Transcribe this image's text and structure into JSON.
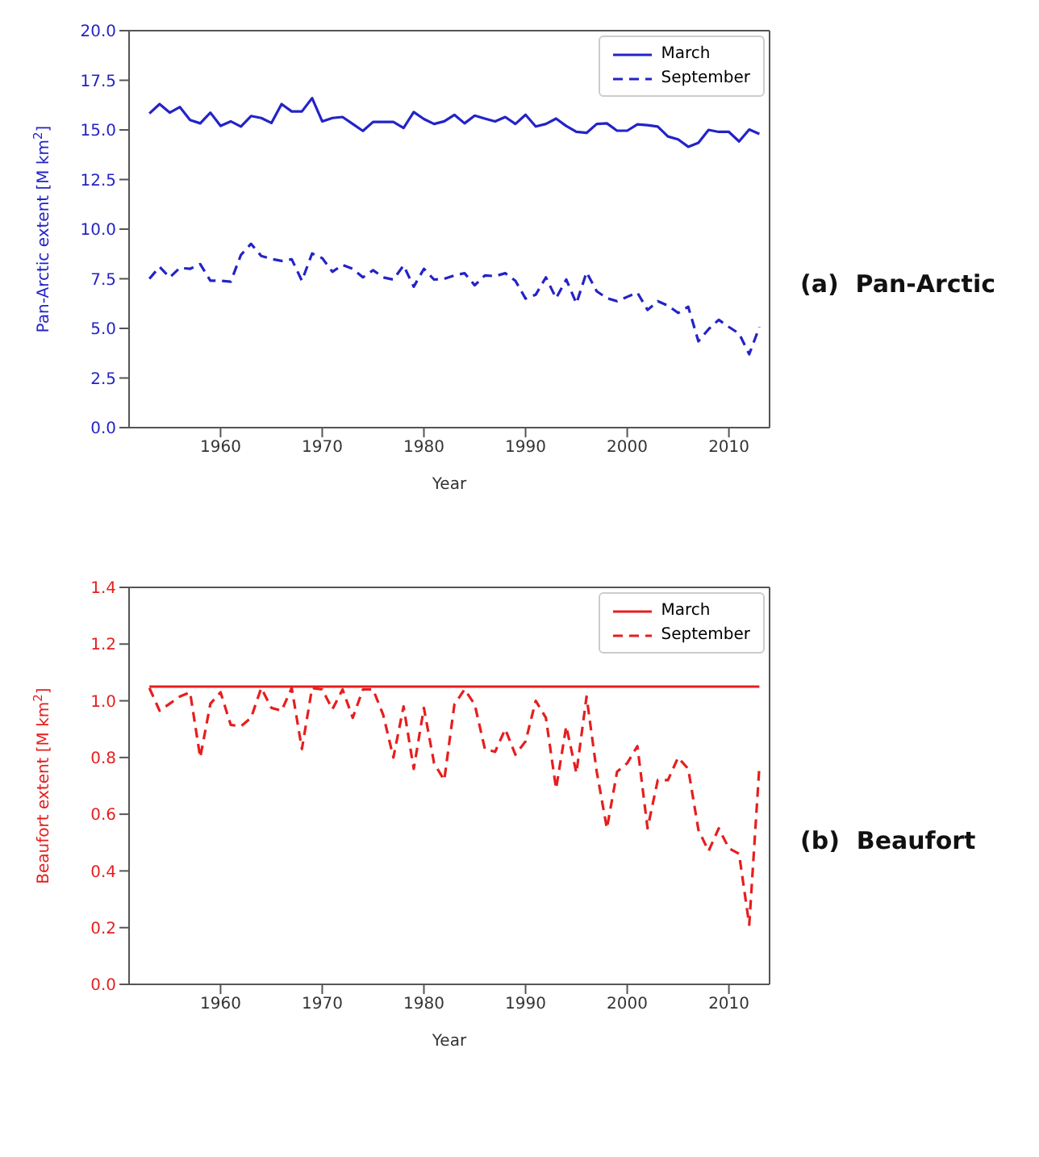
{
  "chart_data": [
    {
      "type": "line",
      "xlabel": "Year",
      "ylabel": "Pan-Arctic extent [M km$^{2}$]",
      "annotations": [
        "(a)  Pan-Arctic"
      ],
      "legend": "top right",
      "x": [
        1953,
        1954,
        1955,
        1956,
        1957,
        1958,
        1959,
        1960,
        1961,
        1962,
        1963,
        1964,
        1965,
        1966,
        1967,
        1968,
        1969,
        1970,
        1971,
        1972,
        1973,
        1974,
        1975,
        1976,
        1977,
        1978,
        1979,
        1980,
        1981,
        1982,
        1983,
        1984,
        1985,
        1986,
        1987,
        1988,
        1989,
        1990,
        1991,
        1992,
        1993,
        1994,
        1995,
        1996,
        1997,
        1998,
        1999,
        2000,
        2001,
        2002,
        2003,
        2004,
        2005,
        2006,
        2007,
        2008,
        2009,
        2010,
        2011,
        2012,
        2013
      ],
      "series": [
        {
          "name": "March",
          "color": "#2323c8",
          "line_style": "solid",
          "values": [
            15.83,
            16.3,
            15.87,
            16.15,
            15.5,
            15.33,
            15.87,
            15.2,
            15.43,
            15.17,
            15.7,
            15.6,
            15.35,
            16.3,
            15.93,
            15.93,
            16.6,
            15.43,
            15.6,
            15.65,
            15.3,
            14.95,
            15.4,
            15.4,
            15.4,
            15.1,
            15.9,
            15.55,
            15.3,
            15.43,
            15.76,
            15.33,
            15.72,
            15.57,
            15.43,
            15.65,
            15.3,
            15.76,
            15.17,
            15.3,
            15.57,
            15.2,
            14.9,
            14.85,
            15.3,
            15.33,
            14.96,
            14.96,
            15.28,
            15.24,
            15.17,
            14.67,
            14.52,
            14.15,
            14.35,
            15.0,
            14.9,
            14.9,
            14.42,
            15.02,
            14.8
          ]
        },
        {
          "name": "September",
          "color": "#2323c8",
          "line_style": "dashed",
          "values": [
            7.5,
            8.1,
            7.57,
            8.05,
            8.0,
            8.24,
            7.4,
            7.4,
            7.35,
            8.7,
            9.26,
            8.65,
            8.5,
            8.4,
            8.48,
            7.4,
            8.77,
            8.54,
            7.85,
            8.2,
            8.0,
            7.57,
            7.93,
            7.57,
            7.46,
            8.17,
            7.1,
            8.0,
            7.46,
            7.5,
            7.67,
            7.78,
            7.17,
            7.67,
            7.63,
            7.78,
            7.4,
            6.5,
            6.7,
            7.57,
            6.52,
            7.46,
            6.26,
            7.83,
            6.87,
            6.52,
            6.37,
            6.59,
            6.8,
            5.93,
            6.37,
            6.15,
            5.78,
            6.09,
            4.35,
            4.96,
            5.43,
            5.07,
            4.74,
            3.7,
            5.07
          ]
        }
      ],
      "xlim": [
        1951,
        2014
      ],
      "xticks": [
        1960,
        1970,
        1980,
        1990,
        2000,
        2010
      ],
      "ylim": [
        0,
        20
      ],
      "yticks": [
        {
          "value": 0,
          "label": "0.0"
        },
        2.5,
        {
          "value": 5,
          "label": "5.0"
        },
        7.5,
        {
          "value": 10,
          "label": "10.0"
        },
        12.5,
        {
          "value": 15,
          "label": "15.0"
        },
        17.5,
        {
          "value": 20,
          "label": "20.0"
        }
      ]
    },
    {
      "type": "line",
      "xlabel": "Year",
      "ylabel": "Beaufort extent [M km$^{2}$]",
      "annotations": [
        "(b)  Beaufort"
      ],
      "legend": "top right",
      "x": [
        1953,
        1954,
        1955,
        1956,
        1957,
        1958,
        1959,
        1960,
        1961,
        1962,
        1963,
        1964,
        1965,
        1966,
        1967,
        1968,
        1969,
        1970,
        1971,
        1972,
        1973,
        1974,
        1975,
        1976,
        1977,
        1978,
        1979,
        1980,
        1981,
        1982,
        1983,
        1984,
        1985,
        1986,
        1987,
        1988,
        1989,
        1990,
        1991,
        1992,
        1993,
        1994,
        1995,
        1996,
        1997,
        1998,
        1999,
        2000,
        2001,
        2002,
        2003,
        2004,
        2005,
        2006,
        2007,
        2008,
        2009,
        2010,
        2011,
        2012,
        2013
      ],
      "series": [
        {
          "name": "March",
          "color": "#e61e1e",
          "line_style": "solid",
          "values": [
            1.05,
            1.05,
            1.05,
            1.05,
            1.05,
            1.05,
            1.05,
            1.05,
            1.05,
            1.05,
            1.05,
            1.05,
            1.05,
            1.05,
            1.05,
            1.05,
            1.05,
            1.05,
            1.05,
            1.05,
            1.05,
            1.05,
            1.05,
            1.05,
            1.05,
            1.05,
            1.05,
            1.05,
            1.05,
            1.05,
            1.05,
            1.05,
            1.05,
            1.05,
            1.05,
            1.05,
            1.05,
            1.05,
            1.05,
            1.05,
            1.05,
            1.05,
            1.05,
            1.05,
            1.05,
            1.05,
            1.05,
            1.05,
            1.05,
            1.05,
            1.05,
            1.05,
            1.05,
            1.05,
            1.05,
            1.05,
            1.05,
            1.05,
            1.05,
            1.05,
            1.05
          ]
        },
        {
          "name": "September",
          "color": "#e61e1e",
          "line_style": "dashed",
          "values": [
            1.045,
            0.965,
            0.99,
            1.015,
            1.03,
            0.8,
            0.99,
            1.03,
            0.915,
            0.91,
            0.94,
            1.045,
            0.975,
            0.965,
            1.045,
            0.83,
            1.045,
            1.04,
            0.97,
            1.04,
            0.94,
            1.04,
            1.04,
            0.95,
            0.8,
            0.98,
            0.76,
            0.975,
            0.78,
            0.72,
            0.987,
            1.04,
            0.987,
            0.83,
            0.82,
            0.9,
            0.81,
            0.857,
            1.0,
            0.94,
            0.69,
            0.91,
            0.745,
            1.015,
            0.75,
            0.55,
            0.75,
            0.78,
            0.84,
            0.55,
            0.72,
            0.72,
            0.8,
            0.76,
            0.545,
            0.47,
            0.55,
            0.48,
            0.46,
            0.21,
            0.77
          ]
        }
      ],
      "xlim": [
        1951,
        2014
      ],
      "xticks": [
        1960,
        1970,
        1980,
        1990,
        2000,
        2010
      ],
      "ylim": [
        0,
        1.4
      ],
      "yticks": [
        {
          "value": 0,
          "label": "0.0"
        },
        0.2,
        0.4,
        0.6,
        0.8,
        {
          "value": 1,
          "label": "1.0"
        },
        1.2,
        1.4
      ]
    }
  ]
}
